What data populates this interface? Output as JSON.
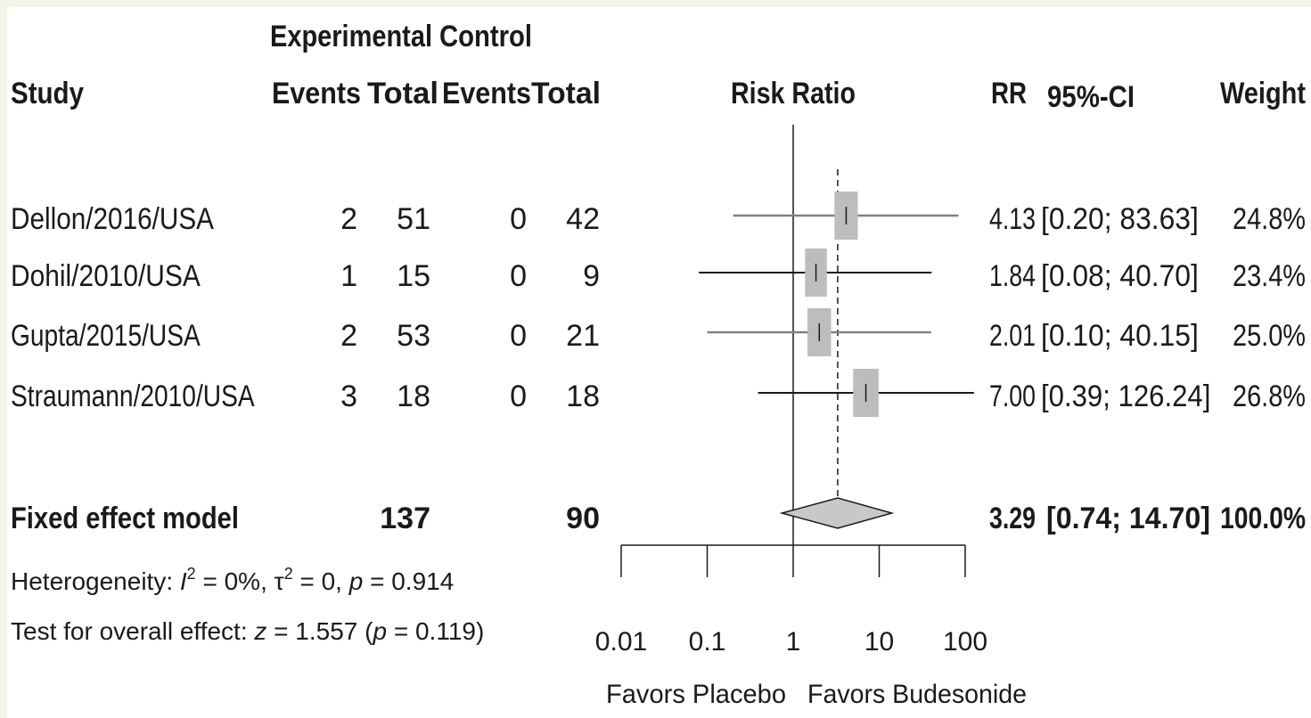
{
  "header": {
    "study": "Study",
    "experimental": "Experimental",
    "control": "Control",
    "exp_events": "Events",
    "exp_total": "Total",
    "ctl_events": "Events",
    "ctl_total": "Total",
    "risk_ratio": "Risk Ratio",
    "rr": "RR",
    "ci": "95%-CI",
    "weight": "Weight"
  },
  "chart_data": {
    "type": "forest",
    "scale": "log",
    "x_ticks": [
      "0.01",
      "0.1",
      "1",
      "10",
      "100"
    ],
    "xlim": [
      0.01,
      100
    ],
    "reference_line": 1,
    "pooled_line": 3.29,
    "favors_left": "Favors Placebo",
    "favors_right": "Favors Budesonide",
    "studies": [
      {
        "name": "Dellon/2016/USA",
        "exp_events": "2",
        "exp_total": "51",
        "ctl_events": "0",
        "ctl_total": "42",
        "rr": 4.13,
        "lower": 0.2,
        "upper": 83.63,
        "weight": 24.8,
        "rr_text": "4.13",
        "ci_text": "[0.20; 83.63]",
        "weight_text": "24.8%"
      },
      {
        "name": "Dohil/2010/USA",
        "exp_events": "1",
        "exp_total": "15",
        "ctl_events": "0",
        "ctl_total": "9",
        "rr": 1.84,
        "lower": 0.08,
        "upper": 40.7,
        "weight": 23.4,
        "rr_text": "1.84",
        "ci_text": "[0.08; 40.70]",
        "weight_text": "23.4%"
      },
      {
        "name": "Gupta/2015/USA",
        "exp_events": "2",
        "exp_total": "53",
        "ctl_events": "0",
        "ctl_total": "21",
        "rr": 2.01,
        "lower": 0.1,
        "upper": 40.15,
        "weight": 25.0,
        "rr_text": "2.01",
        "ci_text": "[0.10; 40.15]",
        "weight_text": "25.0%"
      },
      {
        "name": "Straumann/2010/USA",
        "exp_events": "3",
        "exp_total": "18",
        "ctl_events": "0",
        "ctl_total": "18",
        "rr": 7.0,
        "lower": 0.39,
        "upper": 126.24,
        "weight": 26.8,
        "rr_text": "7.00",
        "ci_text": "[0.39; 126.24]",
        "weight_text": "26.8%"
      }
    ],
    "pooled": {
      "name": "Fixed effect model",
      "exp_total": "137",
      "ctl_total": "90",
      "rr": 3.29,
      "lower": 0.74,
      "upper": 14.7,
      "rr_text": "3.29",
      "ci_text": "[0.74; 14.70]",
      "weight_text": "100.0%"
    },
    "heterogeneity": {
      "prefix": "Heterogeneity: ",
      "i2_symbol": "I",
      "i2_sup": "2",
      "i2_val": " = 0%, ",
      "tau_symbol": "τ",
      "tau_sup": "2",
      "tau_val": " = 0, ",
      "p_symbol": "p",
      "p_val": " = 0.914"
    },
    "overall": {
      "prefix": "Test for overall effect: ",
      "z_symbol": "z",
      "z_val": " = 1.557 (",
      "p_symbol": "p",
      "p_val": " = 0.119)"
    }
  },
  "colors": {
    "box": "#bdbdbd",
    "ci_line": "#808080",
    "ci_line_dark": "#1a1a1a",
    "diamond": "#c8c8c8",
    "text": "#1a1a1a",
    "frame": "#f1f5e8"
  }
}
